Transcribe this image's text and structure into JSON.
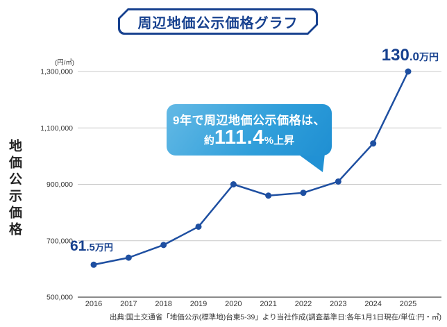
{
  "title": "周辺地価公示価格グラフ",
  "y_axis_title": "地価公示価格",
  "unit_label": "(円/㎡)",
  "source": "出典:国土交通省「地価公示(標準地)台東5-39」より当社作成(調査基準日:各年1月1日現在/単位:円・㎡)",
  "annotations": {
    "start": {
      "int": "61",
      "dec": ".5",
      "unit": "万円"
    },
    "end": {
      "int": "130",
      "dec": ".0",
      "unit": "万円"
    },
    "callout": {
      "line1": "9年で周辺地価公示価格は、",
      "line2_pre": "約",
      "line2_big": "111.4",
      "line2_post": "%上昇"
    }
  },
  "colors": {
    "navy": "#17418f",
    "line": "#1e4fa1",
    "grid": "#c9c9c9",
    "axis": "#8a8a8a",
    "tick_text": "#333333",
    "bubble_start": "#63b9e5",
    "bubble_end": "#1f8fd2"
  },
  "chart_data": {
    "type": "line",
    "title": "周辺地価公示価格グラフ",
    "categories": [
      "2016",
      "2017",
      "2018",
      "2019",
      "2020",
      "2021",
      "2022",
      "2023",
      "2024",
      "2025"
    ],
    "values": [
      615000,
      640000,
      685000,
      750000,
      900000,
      860000,
      870000,
      910000,
      1045000,
      1300000
    ],
    "ylabel": "地価公示価格",
    "y_unit": "円/㎡",
    "ylim": [
      500000,
      1300000
    ],
    "yticks": [
      500000,
      700000,
      900000,
      1100000,
      1300000
    ],
    "grid": true,
    "legend": "none",
    "annotations": [
      {
        "x": "2016",
        "label": "61.5万円"
      },
      {
        "x": "2025",
        "label": "130.0万円"
      },
      {
        "text": "9年で周辺地価公示価格は、約111.4%上昇"
      }
    ]
  }
}
